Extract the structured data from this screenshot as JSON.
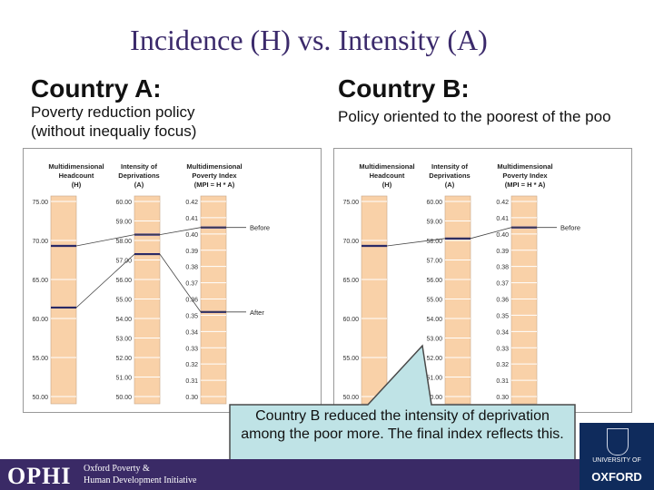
{
  "slide": {
    "title": "Incidence (H) vs. Intensity (A)"
  },
  "country_a": {
    "heading": "Country A:",
    "desc_line1": "Poverty reduction policy",
    "desc_line2": "(without inequaliy focus)"
  },
  "country_b": {
    "heading": "Country B:",
    "desc_line1": "Policy oriented to the poorest of the poo"
  },
  "callout": {
    "text": "Country B reduced the intensity of deprivation among the poor more. The final index reflects this."
  },
  "footer": {
    "logo": "OPHI",
    "sub_line1": "Oxford Poverty &",
    "sub_line2": "Human Development Initiative",
    "univ_line1": "UNIVERSITY OF",
    "univ_name": "OXFORD"
  },
  "chart_data": [
    {
      "type": "line",
      "panel": "Country A",
      "columns": [
        {
          "header": [
            "Multidimensional",
            "Headcount",
            "(H)"
          ],
          "ticks": [
            "75.00",
            "70.00",
            "65.00",
            "60.00",
            "55.00",
            "50.00"
          ],
          "range": [
            50,
            75
          ]
        },
        {
          "header": [
            "Intensity of",
            "Deprivations",
            "(A)"
          ],
          "ticks": [
            "60.00",
            "59.00",
            "58.00",
            "57.00",
            "56.00",
            "55.00",
            "54.00",
            "53.00",
            "52.00",
            "51.00",
            "50.00"
          ],
          "range": [
            50,
            60
          ]
        },
        {
          "header": [
            "Multidimensional",
            "Poverty Index",
            "(MPI = H * A)"
          ],
          "ticks": [
            "0.42",
            "0.41",
            "0.40",
            "0.39",
            "0.38",
            "0.37",
            "0.36",
            "0.35",
            "0.34",
            "0.33",
            "0.32",
            "0.31",
            "0.30"
          ],
          "range": [
            0.3,
            0.42
          ]
        }
      ],
      "series": [
        {
          "name": "Before",
          "values": [
            69.3,
            58.3,
            0.404
          ]
        },
        {
          "name": "After",
          "values": [
            61.4,
            57.3,
            0.352
          ]
        }
      ]
    },
    {
      "type": "line",
      "panel": "Country B",
      "columns": [
        {
          "header": [
            "Multidimensional",
            "Headcount",
            "(H)"
          ],
          "ticks": [
            "75.00",
            "70.00",
            "65.00",
            "60.00",
            "55.00",
            "50.00"
          ],
          "range": [
            50,
            75
          ]
        },
        {
          "header": [
            "Intensity of",
            "Deprivations",
            "(A)"
          ],
          "ticks": [
            "60.00",
            "59.00",
            "58.00",
            "57.00",
            "56.00",
            "55.00",
            "54.00",
            "53.00",
            "52.00",
            "51.00",
            "50.00"
          ],
          "range": [
            50,
            60
          ]
        },
        {
          "header": [
            "Multidimensional",
            "Poverty Index",
            "(MPI = H * A)"
          ],
          "ticks": [
            "0.42",
            "0.41",
            "0.40",
            "0.39",
            "0.38",
            "0.37",
            "0.36",
            "0.35",
            "0.34",
            "0.33",
            "0.32",
            "0.31",
            "0.30"
          ],
          "range": [
            0.3,
            0.42
          ]
        }
      ],
      "series": [
        {
          "name": "Before",
          "values": [
            69.3,
            58.1,
            0.404
          ]
        }
      ]
    }
  ]
}
